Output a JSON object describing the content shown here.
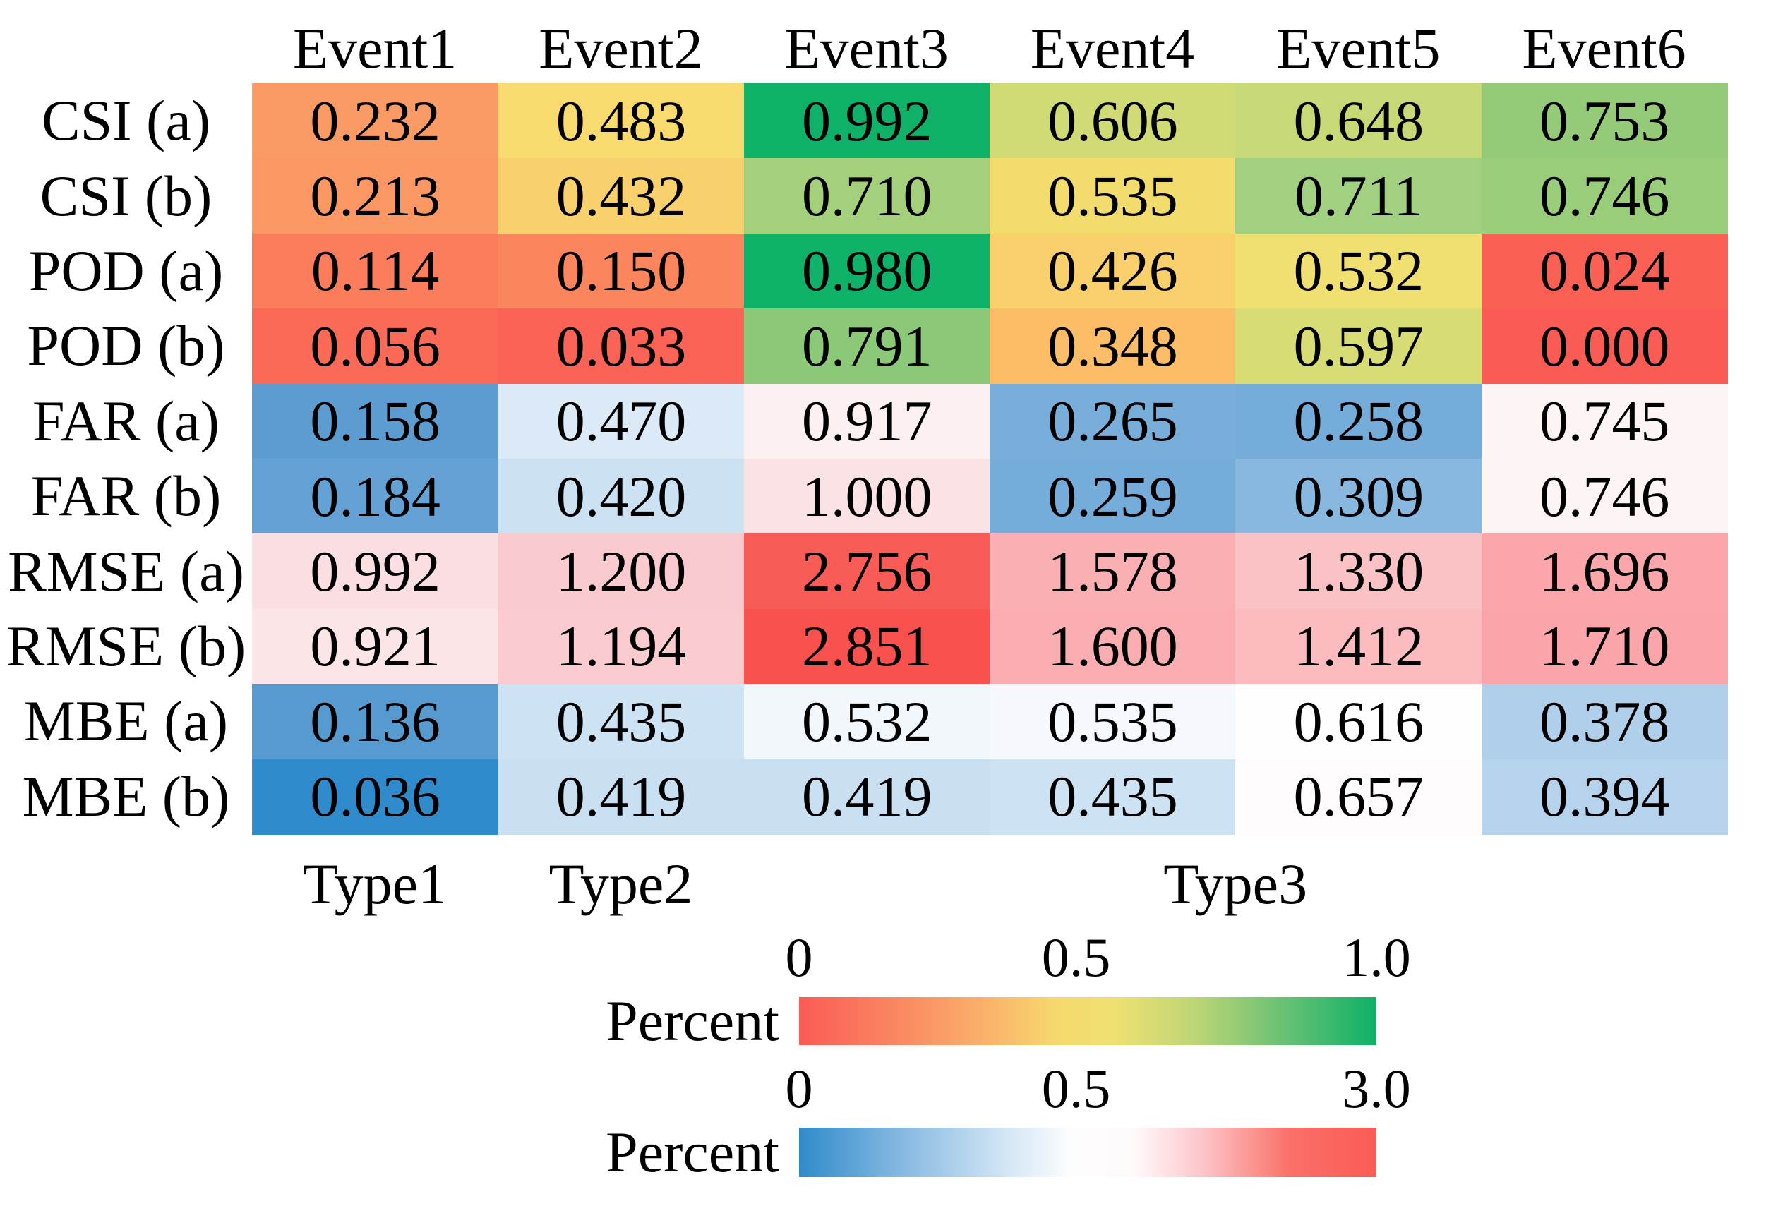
{
  "chart_data": {
    "type": "heatmap",
    "title": "",
    "columns": [
      "Event1",
      "Event2",
      "Event3",
      "Event4",
      "Event5",
      "Event6"
    ],
    "rows": [
      {
        "label": "CSI (a)",
        "colormap": "red-yellow-green",
        "values": [
          "0.232",
          "0.483",
          "0.992",
          "0.606",
          "0.648",
          "0.753"
        ],
        "colors": [
          "#FA9A64",
          "#F8DA6E",
          "#0FB169",
          "#D0DB76",
          "#C7D877",
          "#95CB78"
        ]
      },
      {
        "label": "CSI (b)",
        "colormap": "red-yellow-green",
        "values": [
          "0.213",
          "0.432",
          "0.710",
          "0.535",
          "0.711",
          "0.746"
        ],
        "colors": [
          "#FA9763",
          "#F9D16C",
          "#A4D07B",
          "#F2DC6E",
          "#A0D080",
          "#99CD79"
        ]
      },
      {
        "label": "POD (a)",
        "colormap": "red-yellow-green",
        "values": [
          "0.114",
          "0.150",
          "0.980",
          "0.426",
          "0.532",
          "0.024"
        ],
        "colors": [
          "#FB7D5B",
          "#FB865E",
          "#10B169",
          "#F9D06C",
          "#EFE071",
          "#FA6054"
        ]
      },
      {
        "label": "POD (b)",
        "colormap": "red-yellow-green",
        "values": [
          "0.056",
          "0.033",
          "0.791",
          "0.348",
          "0.597",
          "0.000"
        ],
        "colors": [
          "#FA6A56",
          "#FA6355",
          "#8BC878",
          "#FBBD68",
          "#D7DD74",
          "#FA5B54"
        ]
      },
      {
        "label": "FAR (a)",
        "colormap": "blue-white-red",
        "values": [
          "0.158",
          "0.470",
          "0.917",
          "0.265",
          "0.258",
          "0.745"
        ],
        "colors": [
          "#5C9CD1",
          "#DCEAF7",
          "#FCF0F1",
          "#79AEDB",
          "#76ACDA",
          "#FDF4F4"
        ]
      },
      {
        "label": "FAR (b)",
        "colormap": "blue-white-red",
        "values": [
          "0.184",
          "0.420",
          "1.000",
          "0.259",
          "0.309",
          "0.746"
        ],
        "colors": [
          "#64A1D4",
          "#CCE2F3",
          "#FBE2E4",
          "#76ACDA",
          "#88B8E0",
          "#FDF4F4"
        ]
      },
      {
        "label": "RMSE (a)",
        "colormap": "blue-white-red",
        "values": [
          "0.992",
          "1.200",
          "2.756",
          "1.578",
          "1.330",
          "1.696"
        ],
        "colors": [
          "#FBDEE1",
          "#FACBCE",
          "#F95B57",
          "#FAAFB3",
          "#FBC2C5",
          "#FAA6AA"
        ]
      },
      {
        "label": "RMSE (b)",
        "colormap": "blue-white-red",
        "values": [
          "0.921",
          "1.194",
          "2.851",
          "1.600",
          "1.412",
          "1.710"
        ],
        "colors": [
          "#FCE5E7",
          "#FACCCF",
          "#F9514D",
          "#FAAEB2",
          "#FBBBBF",
          "#FAA5A9"
        ]
      },
      {
        "label": "MBE (a)",
        "colormap": "blue-white-red",
        "values": [
          "0.136",
          "0.435",
          "0.532",
          "0.535",
          "0.616",
          "0.378"
        ],
        "colors": [
          "#569AD0",
          "#CDE2F3",
          "#F2F7FB",
          "#F5F9FD",
          "#FEFEFE",
          "#AFCFEB"
        ]
      },
      {
        "label": "MBE (b)",
        "colormap": "blue-white-red",
        "values": [
          "0.036",
          "0.419",
          "0.419",
          "0.435",
          "0.657",
          "0.394"
        ],
        "colors": [
          "#2F8BCB",
          "#C9E0F2",
          "#C9E0F2",
          "#CDE2F3",
          "#FEFCFC",
          "#B5D3EC"
        ]
      }
    ],
    "type_labels": [
      {
        "text": "Type1",
        "col_start": 1,
        "col_span": 1
      },
      {
        "text": "Type2",
        "col_start": 2,
        "col_span": 1
      },
      {
        "text": "Type3",
        "col_start": 3,
        "col_span": 4
      }
    ],
    "colorbars": [
      {
        "label": "Percent",
        "range": [
          0,
          1.0
        ],
        "ticks": [
          {
            "text": "0",
            "pos": 0
          },
          {
            "text": "0.5",
            "pos": 0.48
          },
          {
            "text": "1.0",
            "pos": 1
          }
        ],
        "gradient": [
          {
            "pos": 0,
            "color": "#FA5B55"
          },
          {
            "pos": 12,
            "color": "#FA7A5E"
          },
          {
            "pos": 28,
            "color": "#FBA569"
          },
          {
            "pos": 45,
            "color": "#F6D96E"
          },
          {
            "pos": 55,
            "color": "#EEE071"
          },
          {
            "pos": 68,
            "color": "#BFD675"
          },
          {
            "pos": 82,
            "color": "#74C375"
          },
          {
            "pos": 100,
            "color": "#0DB168"
          }
        ]
      },
      {
        "label": "Percent",
        "range": [
          0,
          3.0
        ],
        "ticks": [
          {
            "text": "0",
            "pos": 0
          },
          {
            "text": "0.5",
            "pos": 0.48
          },
          {
            "text": "3.0",
            "pos": 1
          }
        ],
        "gradient": [
          {
            "pos": 0,
            "color": "#2F8BCB"
          },
          {
            "pos": 15,
            "color": "#7AB2DE"
          },
          {
            "pos": 35,
            "color": "#CFE4F4"
          },
          {
            "pos": 47,
            "color": "#FDFDFE"
          },
          {
            "pos": 58,
            "color": "#FFFAFA"
          },
          {
            "pos": 70,
            "color": "#FCC5C9"
          },
          {
            "pos": 85,
            "color": "#FA7068"
          },
          {
            "pos": 100,
            "color": "#FA5B55"
          }
        ]
      }
    ]
  }
}
